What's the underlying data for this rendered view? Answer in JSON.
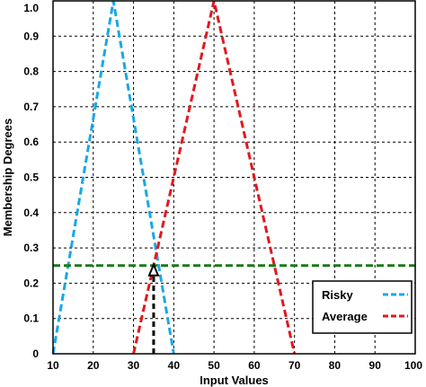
{
  "chart_data": {
    "type": "line",
    "xlabel": "Input Values",
    "ylabel": "Membership Degrees",
    "xlim": [
      10,
      100
    ],
    "ylim": [
      0,
      1.0
    ],
    "x_ticks": [
      "10",
      "20",
      "30",
      "40",
      "50",
      "60",
      "70",
      "80",
      "90",
      "100"
    ],
    "y_ticks": [
      "0",
      "0.1",
      "0.2",
      "0.3",
      "0.4",
      "0.5",
      "0.6",
      "0.7",
      "0.8",
      "0.9",
      "1.0"
    ],
    "grid": true,
    "legend_position": "bottom-right",
    "series": [
      {
        "name": "Risky",
        "color": "#1aa7e6",
        "dash": "dashed",
        "x": [
          10,
          25,
          40
        ],
        "y": [
          0,
          1.0,
          0
        ]
      },
      {
        "name": "Average",
        "color": "#e0191f",
        "dash": "dashed",
        "x": [
          30,
          50,
          70
        ],
        "y": [
          0,
          1.0,
          0
        ]
      }
    ],
    "annotations": [
      {
        "type": "horizontal-line",
        "y": 0.25,
        "color": "#1a7a1a",
        "dash": "dashed"
      },
      {
        "type": "vertical-arrow",
        "x": 35,
        "y_start": 0,
        "y_end": 0.25,
        "color": "#000000",
        "dash": "dashed"
      }
    ]
  }
}
